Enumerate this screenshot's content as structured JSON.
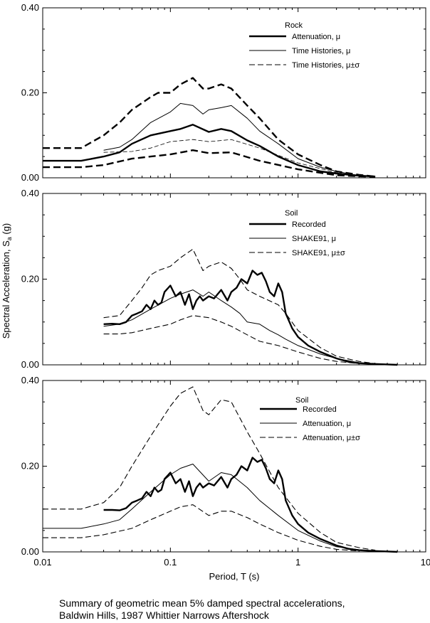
{
  "figure": {
    "ylabel_main": "Spectral Acceleration, S",
    "ylabel_sub": "a",
    "ylabel_unit": " (g)",
    "xlabel": "Period, T (s)",
    "caption_line1": "Summary of geometric mean 5% damped spectral accelerations,",
    "caption_line2": "Baldwin Hills, 1987 Whittier Narrows Aftershock"
  },
  "chart_data": [
    {
      "type": "line",
      "legend_title": "Rock",
      "legend_placement": "top-right",
      "xscale": "log",
      "xlim": [
        0.01,
        10
      ],
      "ylim": [
        0,
        0.4
      ],
      "yticks": [
        "0.00",
        "0.20",
        "0.40"
      ],
      "xticks": [],
      "series": [
        {
          "name": "Attenuation, μ",
          "style": "thick",
          "x": [
            0.01,
            0.02,
            0.03,
            0.04,
            0.05,
            0.07,
            0.1,
            0.12,
            0.15,
            0.2,
            0.25,
            0.3,
            0.4,
            0.5,
            0.7,
            1,
            1.5,
            2,
            3,
            4
          ],
          "y": [
            0.04,
            0.04,
            0.05,
            0.06,
            0.08,
            0.1,
            0.11,
            0.115,
            0.125,
            0.108,
            0.115,
            0.11,
            0.088,
            0.075,
            0.05,
            0.03,
            0.015,
            0.01,
            0.005,
            0.003
          ]
        },
        {
          "name": "Time Histories, μ",
          "style": "thin",
          "x": [
            0.03,
            0.04,
            0.05,
            0.07,
            0.1,
            0.12,
            0.15,
            0.18,
            0.2,
            0.25,
            0.3,
            0.4,
            0.5,
            0.7,
            1,
            1.5,
            2,
            3
          ],
          "y": [
            0.065,
            0.072,
            0.09,
            0.13,
            0.155,
            0.175,
            0.17,
            0.15,
            0.16,
            0.165,
            0.17,
            0.14,
            0.11,
            0.08,
            0.045,
            0.025,
            0.015,
            0.005
          ]
        },
        {
          "name": "Time Histories, μ±σ",
          "style": "dash",
          "x": [
            0.01,
            0.02,
            0.03,
            0.04,
            0.05,
            0.07,
            0.08,
            0.1,
            0.12,
            0.15,
            0.18,
            0.2,
            0.25,
            0.3,
            0.4,
            0.5,
            0.7,
            1,
            1.5,
            2,
            3,
            4
          ],
          "y": [
            0.07,
            0.07,
            0.1,
            0.13,
            0.16,
            0.19,
            0.2,
            0.2,
            0.22,
            0.235,
            0.21,
            0.21,
            0.22,
            0.21,
            0.17,
            0.14,
            0.09,
            0.055,
            0.03,
            0.015,
            0.007,
            0.003
          ]
        },
        {
          "name": "",
          "style": "dash",
          "x": [
            0.01,
            0.02,
            0.03,
            0.05,
            0.07,
            0.1,
            0.15,
            0.2,
            0.3,
            0.5,
            1,
            2,
            4
          ],
          "y": [
            0.025,
            0.025,
            0.03,
            0.045,
            0.05,
            0.055,
            0.065,
            0.058,
            0.06,
            0.04,
            0.02,
            0.006,
            0.002
          ]
        },
        {
          "name": "",
          "style": "thin-dash",
          "x": [
            0.03,
            0.05,
            0.07,
            0.1,
            0.15,
            0.2,
            0.3,
            0.5,
            1,
            2,
            3
          ],
          "y": [
            0.06,
            0.062,
            0.07,
            0.085,
            0.09,
            0.085,
            0.09,
            0.07,
            0.035,
            0.012,
            0.004
          ]
        }
      ]
    },
    {
      "type": "line",
      "legend_title": "Soil",
      "legend_placement": "top-right",
      "xscale": "log",
      "xlim": [
        0.01,
        10
      ],
      "ylim": [
        0,
        0.4
      ],
      "yticks": [
        "0.00",
        "0.20",
        "0.40"
      ],
      "xticks": [],
      "series": [
        {
          "name": "Recorded",
          "style": "thick",
          "x": [
            0.03,
            0.035,
            0.04,
            0.045,
            0.05,
            0.055,
            0.06,
            0.065,
            0.07,
            0.075,
            0.08,
            0.085,
            0.09,
            0.1,
            0.11,
            0.12,
            0.13,
            0.14,
            0.15,
            0.16,
            0.17,
            0.18,
            0.2,
            0.22,
            0.25,
            0.28,
            0.3,
            0.33,
            0.36,
            0.4,
            0.44,
            0.48,
            0.52,
            0.56,
            0.6,
            0.65,
            0.7,
            0.75,
            0.8,
            0.9,
            1,
            1.2,
            1.5,
            2,
            2.5,
            3,
            4,
            5,
            6
          ],
          "y": [
            0.095,
            0.096,
            0.095,
            0.1,
            0.115,
            0.12,
            0.125,
            0.14,
            0.13,
            0.15,
            0.14,
            0.145,
            0.17,
            0.185,
            0.16,
            0.17,
            0.14,
            0.165,
            0.13,
            0.15,
            0.16,
            0.15,
            0.16,
            0.155,
            0.175,
            0.15,
            0.17,
            0.18,
            0.2,
            0.19,
            0.22,
            0.21,
            0.215,
            0.195,
            0.17,
            0.16,
            0.19,
            0.17,
            0.12,
            0.085,
            0.065,
            0.045,
            0.03,
            0.015,
            0.007,
            0.004,
            0.002,
            0.001,
            0.0
          ]
        },
        {
          "name": "SHAKE91, μ",
          "style": "thin",
          "x": [
            0.03,
            0.04,
            0.05,
            0.07,
            0.1,
            0.12,
            0.15,
            0.18,
            0.2,
            0.25,
            0.3,
            0.35,
            0.4,
            0.5,
            0.6,
            0.7,
            0.8,
            1,
            1.5,
            2,
            3,
            4
          ],
          "y": [
            0.09,
            0.095,
            0.105,
            0.13,
            0.155,
            0.165,
            0.175,
            0.16,
            0.17,
            0.15,
            0.135,
            0.12,
            0.1,
            0.095,
            0.08,
            0.07,
            0.06,
            0.045,
            0.025,
            0.015,
            0.005,
            0.002
          ]
        },
        {
          "name": "SHAKE91, μ±σ",
          "style": "dash",
          "x": [
            0.03,
            0.04,
            0.05,
            0.06,
            0.07,
            0.08,
            0.1,
            0.12,
            0.15,
            0.18,
            0.2,
            0.25,
            0.3,
            0.35,
            0.4,
            0.5,
            0.7,
            0.8,
            1,
            1.5,
            2,
            3,
            4
          ],
          "y": [
            0.11,
            0.115,
            0.15,
            0.18,
            0.21,
            0.22,
            0.23,
            0.25,
            0.27,
            0.22,
            0.23,
            0.24,
            0.225,
            0.2,
            0.175,
            0.16,
            0.14,
            0.12,
            0.08,
            0.04,
            0.02,
            0.008,
            0.003
          ]
        },
        {
          "name": "",
          "style": "dash",
          "x": [
            0.03,
            0.04,
            0.05,
            0.07,
            0.1,
            0.12,
            0.15,
            0.2,
            0.25,
            0.3,
            0.4,
            0.5,
            0.7,
            1,
            1.5,
            2,
            3
          ],
          "y": [
            0.072,
            0.072,
            0.075,
            0.085,
            0.095,
            0.105,
            0.115,
            0.11,
            0.1,
            0.09,
            0.07,
            0.055,
            0.045,
            0.03,
            0.015,
            0.008,
            0.003
          ]
        }
      ]
    },
    {
      "type": "line",
      "legend_title": "Soil",
      "legend_placement": "top-right",
      "xscale": "log",
      "xlim": [
        0.01,
        10
      ],
      "ylim": [
        0,
        0.4
      ],
      "yticks": [
        "0.00",
        "0.20",
        "0.40"
      ],
      "xticks": [
        "0.01",
        "0.1",
        "1",
        "10"
      ],
      "series": [
        {
          "name": "Recorded",
          "style": "thick",
          "x": [
            0.03,
            0.035,
            0.04,
            0.045,
            0.05,
            0.055,
            0.06,
            0.065,
            0.07,
            0.075,
            0.08,
            0.085,
            0.09,
            0.1,
            0.11,
            0.12,
            0.13,
            0.14,
            0.15,
            0.16,
            0.17,
            0.18,
            0.2,
            0.22,
            0.25,
            0.28,
            0.3,
            0.33,
            0.36,
            0.4,
            0.44,
            0.48,
            0.52,
            0.56,
            0.6,
            0.65,
            0.7,
            0.75,
            0.8,
            0.9,
            1,
            1.2,
            1.5,
            2,
            2.5,
            3,
            4,
            5,
            6
          ],
          "y": [
            0.098,
            0.098,
            0.097,
            0.102,
            0.115,
            0.12,
            0.125,
            0.14,
            0.13,
            0.15,
            0.14,
            0.145,
            0.17,
            0.185,
            0.16,
            0.17,
            0.14,
            0.165,
            0.13,
            0.15,
            0.16,
            0.15,
            0.16,
            0.155,
            0.175,
            0.15,
            0.17,
            0.18,
            0.2,
            0.19,
            0.22,
            0.21,
            0.215,
            0.195,
            0.17,
            0.16,
            0.19,
            0.17,
            0.12,
            0.085,
            0.065,
            0.045,
            0.03,
            0.015,
            0.007,
            0.004,
            0.002,
            0.001,
            0.0
          ]
        },
        {
          "name": "Attenuation, μ",
          "style": "thin",
          "x": [
            0.01,
            0.02,
            0.03,
            0.04,
            0.05,
            0.07,
            0.1,
            0.12,
            0.15,
            0.2,
            0.25,
            0.3,
            0.4,
            0.5,
            0.7,
            1,
            1.5,
            2,
            3,
            4
          ],
          "y": [
            0.055,
            0.055,
            0.065,
            0.075,
            0.1,
            0.14,
            0.18,
            0.195,
            0.205,
            0.165,
            0.185,
            0.18,
            0.15,
            0.12,
            0.085,
            0.05,
            0.025,
            0.012,
            0.005,
            0.002
          ]
        },
        {
          "name": "Attenuation, μ±σ",
          "style": "dash",
          "x": [
            0.01,
            0.02,
            0.03,
            0.04,
            0.05,
            0.07,
            0.1,
            0.12,
            0.15,
            0.18,
            0.2,
            0.25,
            0.3,
            0.4,
            0.5,
            0.7,
            1,
            1.5,
            2,
            3,
            4
          ],
          "y": [
            0.1,
            0.1,
            0.115,
            0.15,
            0.2,
            0.27,
            0.34,
            0.37,
            0.385,
            0.33,
            0.32,
            0.355,
            0.35,
            0.28,
            0.23,
            0.15,
            0.09,
            0.045,
            0.022,
            0.01,
            0.004
          ]
        },
        {
          "name": "",
          "style": "dash",
          "x": [
            0.01,
            0.02,
            0.03,
            0.05,
            0.07,
            0.1,
            0.12,
            0.15,
            0.2,
            0.25,
            0.3,
            0.4,
            0.5,
            0.7,
            1,
            1.5,
            2,
            3
          ],
          "y": [
            0.033,
            0.033,
            0.04,
            0.055,
            0.075,
            0.095,
            0.105,
            0.11,
            0.085,
            0.095,
            0.095,
            0.08,
            0.065,
            0.045,
            0.027,
            0.013,
            0.006,
            0.002
          ]
        }
      ]
    }
  ]
}
